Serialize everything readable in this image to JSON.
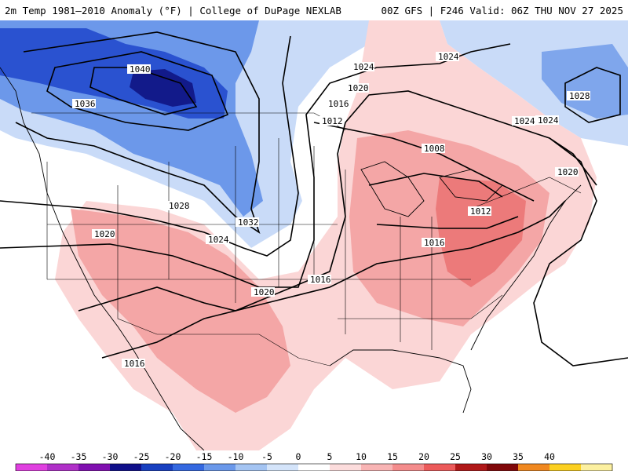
{
  "header": {
    "title": "2m Temp 1981–2010 Anomaly (°F) | College of DuPage NEXLAB",
    "run_info": "00Z GFS | F246 Valid: 06Z THU NOV 27 2025"
  },
  "isobar_labels": [
    "1040",
    "1036",
    "1032",
    "1028",
    "1024",
    "1020",
    "1016",
    "1012",
    "1008",
    "1024",
    "1020",
    "1016",
    "1012",
    "1016",
    "1020",
    "1024",
    "1024",
    "1028",
    "1024",
    "1020",
    "1016"
  ],
  "colorbar": {
    "labels": [
      "-40",
      "-35",
      "-30",
      "-25",
      "-20",
      "-15",
      "-10",
      "-5",
      "0",
      "5",
      "10",
      "15",
      "20",
      "25",
      "30",
      "35",
      "40"
    ],
    "colors": [
      "#e040e0",
      "#b030c8",
      "#8010b0",
      "#10108a",
      "#1840c0",
      "#3468e0",
      "#6a98ea",
      "#a4c4f2",
      "#d4e4fa",
      "#ffffff",
      "#fcdcdc",
      "#f8b4b4",
      "#f48c8c",
      "#ec5a5a",
      "#b01818",
      "#80080a",
      "#f08820",
      "#fcd020",
      "#fcf0a0"
    ]
  },
  "colors": {
    "cold_strong": "#1a3fd0",
    "cold_mid": "#5a87e8",
    "cold_light": "#c6d9f8",
    "warm_light": "#fbd6d6",
    "warm_mid": "#f4a6a6",
    "warm_strong": "#ec7a7a",
    "background": "#ffffff"
  }
}
